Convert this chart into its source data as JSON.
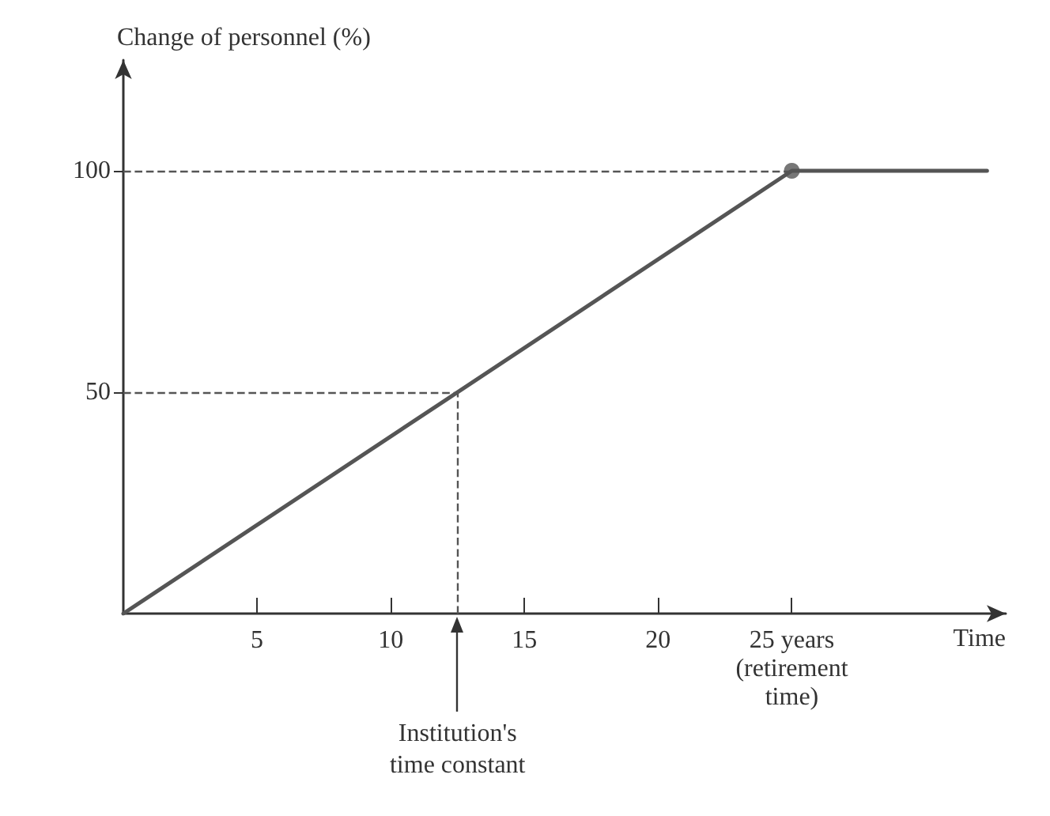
{
  "chart_data": {
    "type": "line",
    "ylabel": "Change of personnel (%)",
    "xlabel": "Time",
    "xlim": [
      0,
      33
    ],
    "ylim": [
      0,
      125
    ],
    "xticks": [
      5,
      10,
      15,
      20,
      {
        "value": 25,
        "label": "25 years\n(retirement\ntime)"
      }
    ],
    "yticks": [
      50,
      100
    ],
    "series": [
      {
        "color": "#555555",
        "x": [
          0,
          25,
          32.3
        ],
        "values": [
          0,
          100,
          100
        ],
        "marker": "none"
      },
      {
        "type": "scatter",
        "color": "#555555",
        "x": [
          25
        ],
        "values": [
          100
        ],
        "marker": "circle"
      }
    ],
    "ref_lines": [
      {
        "axis": "y",
        "value": 100,
        "line_style": "dashed",
        "color": "#555555"
      },
      {
        "axis": "y",
        "value": 50,
        "line_style": "dashed",
        "color": "#555555"
      },
      {
        "axis": "x",
        "value": 12.5,
        "line_style": "dashed",
        "color": "#555555"
      }
    ],
    "annotations": [
      {
        "text": "Institution's\ntime constant",
        "x": 12.5,
        "y": 0
      }
    ]
  }
}
